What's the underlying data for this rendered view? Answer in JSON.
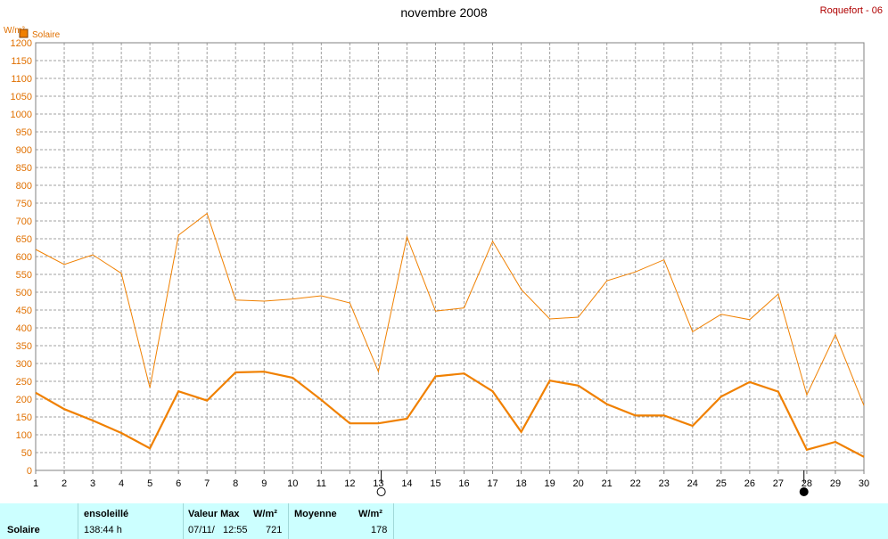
{
  "header": {
    "title": "novembre 2008",
    "station": "Roquefort - 06"
  },
  "chart_data": {
    "type": "line",
    "title": "novembre 2008",
    "ylabel": "W/m²",
    "ylim": [
      0,
      1200
    ],
    "xlim": [
      1,
      30
    ],
    "yticks": [
      0,
      50,
      100,
      150,
      200,
      250,
      300,
      350,
      400,
      450,
      500,
      550,
      600,
      650,
      700,
      750,
      800,
      850,
      900,
      950,
      1000,
      1050,
      1100,
      1150,
      1200
    ],
    "xticks": [
      "1",
      "2",
      "3",
      "4",
      "5",
      "6",
      "7",
      "8",
      "9",
      "10",
      "11",
      "12",
      "13",
      "14",
      "15",
      "16",
      "17",
      "18",
      "19",
      "20",
      "21",
      "22",
      "23",
      "24",
      "25",
      "26",
      "27",
      "28",
      "29",
      "30"
    ],
    "grid": true,
    "legend": [
      "Solaire"
    ],
    "moon_markers": [
      {
        "day": 13.1,
        "phase": "full"
      },
      {
        "day": 27.9,
        "phase": "new"
      }
    ],
    "colors": {
      "series": "#f08000",
      "grid": "#a0a0a0",
      "axis_label": "#e07000"
    },
    "series": [
      {
        "name": "Solaire",
        "role": "max",
        "values": [
          620,
          578,
          605,
          553,
          232,
          660,
          721,
          478,
          475,
          481,
          490,
          470,
          277,
          655,
          447,
          456,
          643,
          508,
          425,
          430,
          532,
          557,
          591,
          389,
          438,
          423,
          495,
          212,
          381,
          182
        ]
      },
      {
        "name": "Solaire",
        "role": "mean",
        "values": [
          218,
          172,
          140,
          105,
          62,
          222,
          196,
          275,
          277,
          260,
          198,
          132,
          132,
          145,
          264,
          272,
          222,
          108,
          252,
          238,
          186,
          154,
          154,
          125,
          207,
          248,
          221,
          58,
          80,
          38
        ]
      }
    ]
  },
  "footer": {
    "name": "Solaire",
    "sun_label": "ensoleillé",
    "sun_value": "138:44 h",
    "max_label": "Valeur Max",
    "max_unit": "W/m²",
    "max_date": "07/11/",
    "max_time": "12:55",
    "max_value": "721",
    "mean_label": "Moyenne",
    "mean_unit": "W/m²",
    "mean_value": "178"
  }
}
